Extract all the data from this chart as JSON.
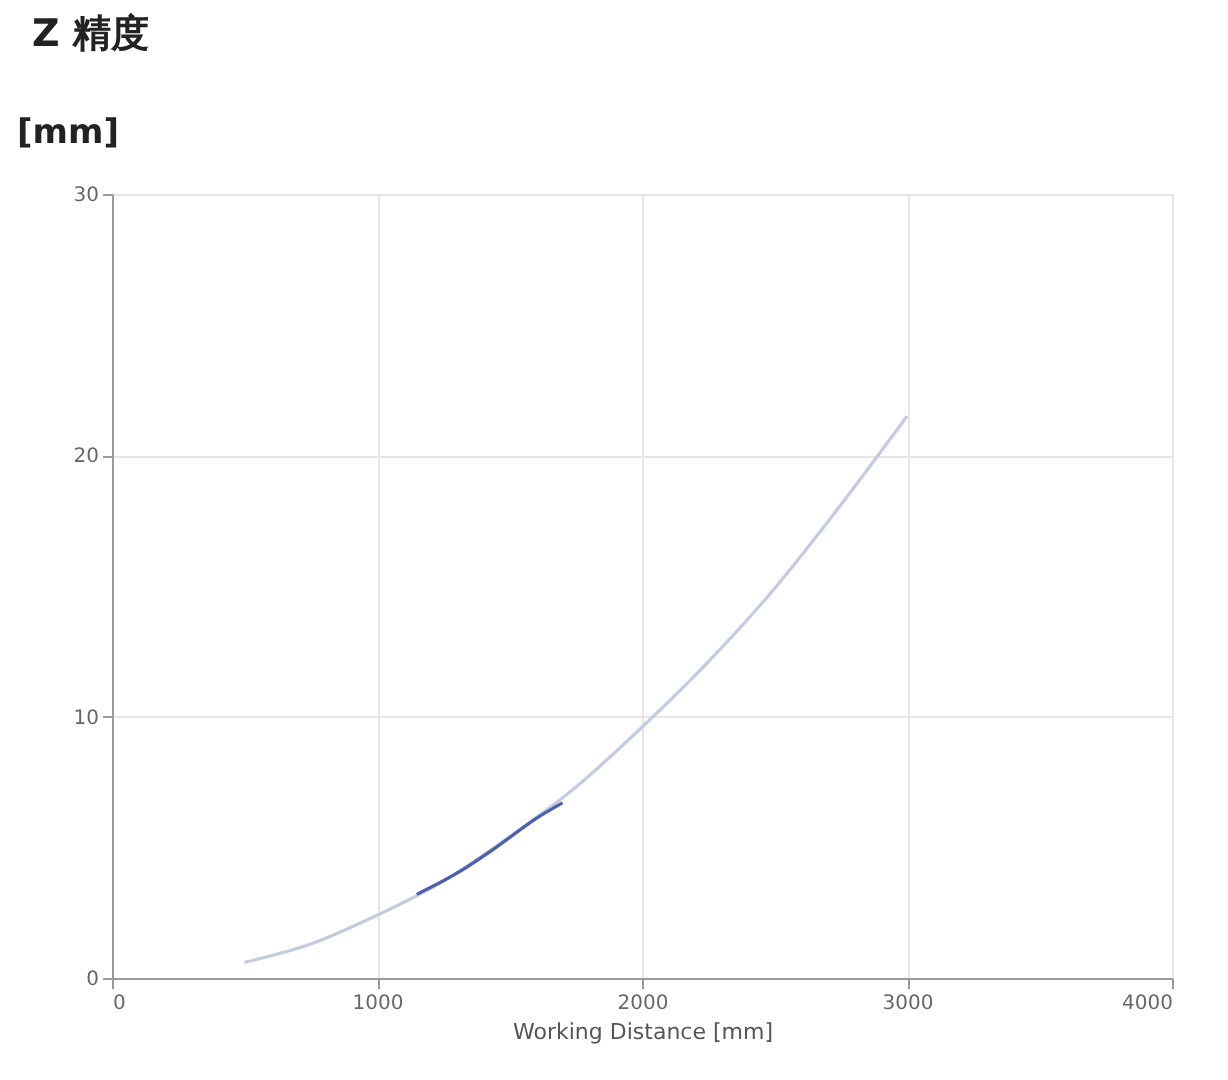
{
  "chart_data": {
    "type": "line",
    "title": "Z 精度",
    "ylabel": "[mm]",
    "xlabel": "Working Distance [mm]",
    "xlim": [
      0,
      4000
    ],
    "xticks": [
      0,
      1000,
      2000,
      3000,
      4000
    ],
    "ylim": [
      0,
      30
    ],
    "yticks": [
      0,
      10,
      20,
      30
    ],
    "grid": true,
    "marker": "none",
    "line_style": "solid",
    "series": [
      {
        "color": "#c3cbe0",
        "x": [
          500,
          750,
          1000,
          1250,
          1500,
          1750,
          2000,
          2250,
          2500,
          2750,
          3000
        ],
        "values": [
          0.6,
          1.3,
          2.4,
          3.7,
          5.4,
          7.3,
          9.6,
          12.1,
          14.9,
          18.1,
          21.5
        ]
      },
      {
        "color": "#4a5fb0",
        "x": [
          1150,
          1300,
          1450,
          1600,
          1700
        ],
        "values": [
          3.2,
          4.0,
          5.0,
          6.1,
          6.7
        ]
      }
    ]
  }
}
